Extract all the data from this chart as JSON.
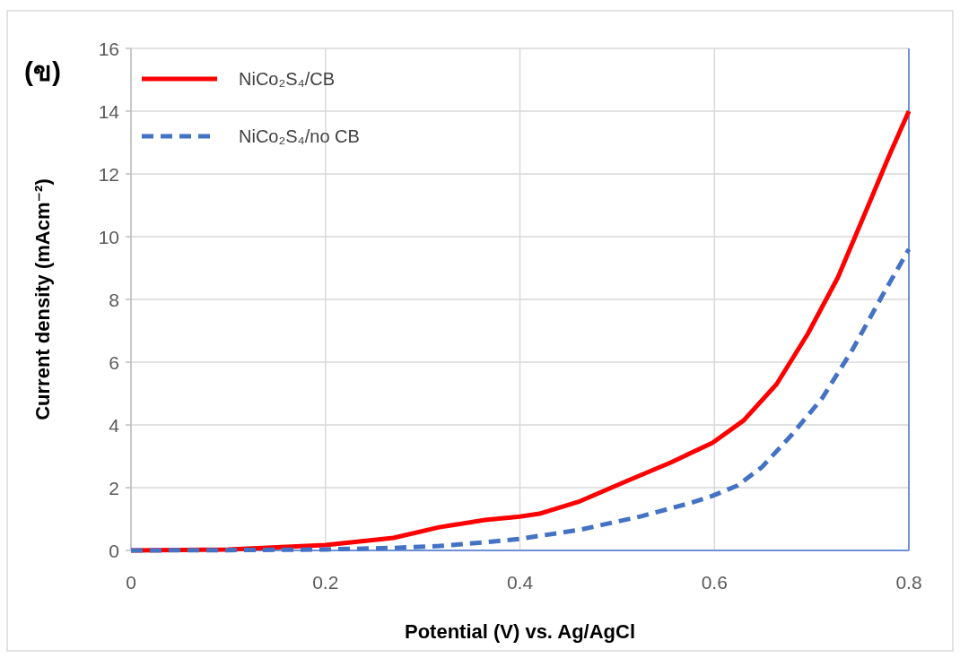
{
  "chart_data": {
    "type": "line",
    "title": "(ข)",
    "xlabel": "Potential (V) vs. Ag/AgCl",
    "ylabel": "Current density (mAcm⁻²)",
    "xlim": [
      0,
      0.8
    ],
    "ylim": [
      0,
      16
    ],
    "xticks": [
      0,
      {
        "value": 0.2,
        "label": "0.2"
      },
      {
        "value": 0.4,
        "label": "0.4"
      },
      {
        "value": 0.6,
        "label": "0.6"
      },
      {
        "value": 0.8,
        "label": "0.8"
      }
    ],
    "yticks": [
      0,
      2,
      4,
      6,
      8,
      10,
      12,
      14,
      16
    ],
    "grid": true,
    "legend": "top left",
    "series": [
      {
        "name": "NiCo₂S₄/CB",
        "color": "#ff0000",
        "line_style": "solid",
        "x": [
          0,
          0.1,
          0.2,
          0.27,
          0.317,
          0.364,
          0.4,
          0.42,
          0.462,
          0.509,
          0.555,
          0.598,
          0.63,
          0.664,
          0.696,
          0.727,
          0.757,
          0.78,
          0.8
        ],
        "values": [
          0,
          0.03,
          0.17,
          0.4,
          0.74,
          0.97,
          1.08,
          1.17,
          1.57,
          2.2,
          2.8,
          3.43,
          4.14,
          5.3,
          6.9,
          8.7,
          10.9,
          12.6,
          14.0
        ]
      },
      {
        "name": "NiCo₂S₄/no CB",
        "color": "#4472c4",
        "line_style": "dashed",
        "x": [
          0,
          0.1,
          0.2,
          0.27,
          0.317,
          0.364,
          0.4,
          0.462,
          0.525,
          0.574,
          0.598,
          0.624,
          0.649,
          0.68,
          0.711,
          0.742,
          0.773,
          0.8
        ],
        "values": [
          0,
          0.01,
          0.03,
          0.08,
          0.14,
          0.26,
          0.37,
          0.66,
          1.09,
          1.5,
          1.74,
          2.07,
          2.66,
          3.7,
          4.86,
          6.4,
          8.14,
          9.6
        ]
      }
    ]
  }
}
